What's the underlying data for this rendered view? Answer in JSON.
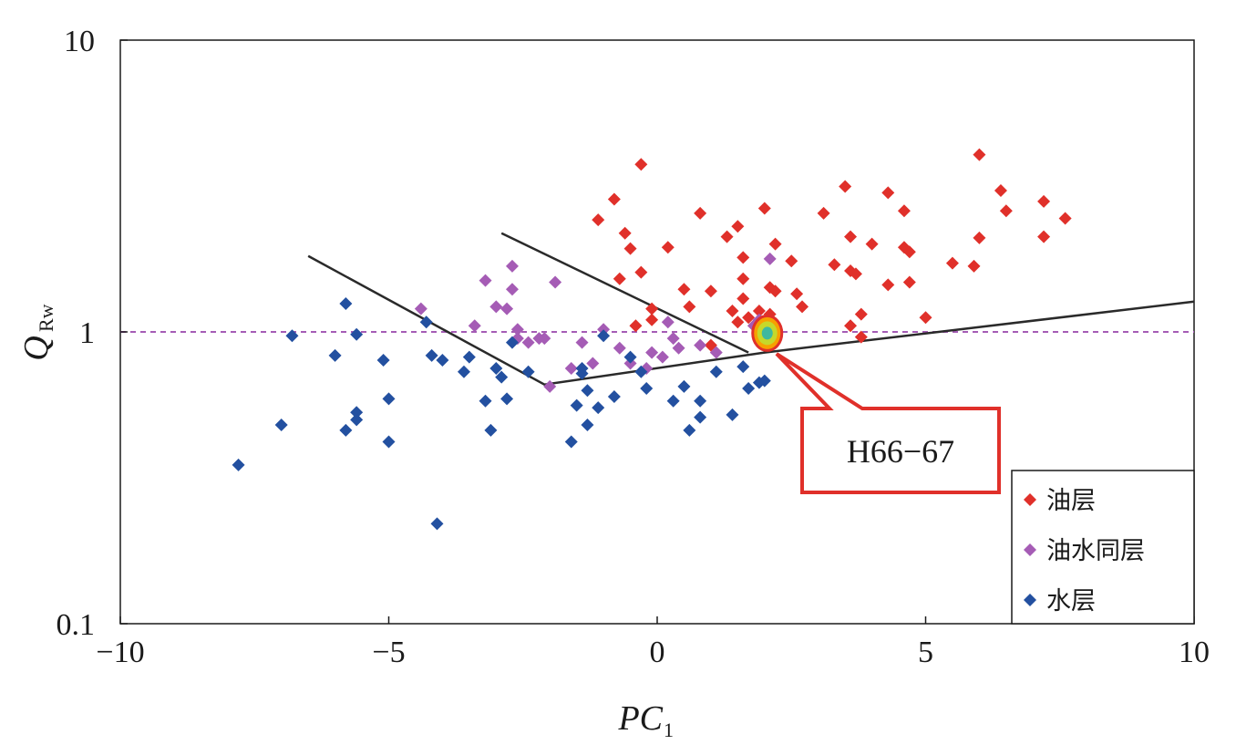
{
  "chart_data": {
    "type": "scatter",
    "title": "",
    "xlabel": "PC",
    "xlabel_sub": "1",
    "ylabel": "Q",
    "ylabel_sub": "Rw",
    "xlim": [
      -10,
      10
    ],
    "ylim": [
      0.1,
      10
    ],
    "yscale": "log",
    "x_ticks": [
      {
        "value": -10,
        "label": "−10"
      },
      {
        "value": -5,
        "label": "−5"
      },
      {
        "value": 0,
        "label": "0"
      },
      {
        "value": 5,
        "label": "5"
      },
      {
        "value": 10,
        "label": "10"
      }
    ],
    "y_ticks": [
      {
        "value": 10,
        "label": "10"
      },
      {
        "value": 1,
        "label": "1"
      },
      {
        "value": 0.1,
        "label": "0.1"
      }
    ],
    "grid": false,
    "legend_position": "bottom-right",
    "series": [
      {
        "name": "油层",
        "color": "#e0302a",
        "points": [
          [
            -1.1,
            2.42
          ],
          [
            -0.8,
            2.85
          ],
          [
            -0.6,
            2.18
          ],
          [
            -0.5,
            1.93
          ],
          [
            -0.7,
            1.52
          ],
          [
            -0.3,
            3.75
          ],
          [
            -0.3,
            1.6
          ],
          [
            -0.1,
            1.2
          ],
          [
            -0.1,
            1.1
          ],
          [
            -0.4,
            1.05
          ],
          [
            0.2,
            1.95
          ],
          [
            0.5,
            1.4
          ],
          [
            0.6,
            1.22
          ],
          [
            0.8,
            2.55
          ],
          [
            1.0,
            1.38
          ],
          [
            1.3,
            2.12
          ],
          [
            1.4,
            1.18
          ],
          [
            1.5,
            1.08
          ],
          [
            1.5,
            2.3
          ],
          [
            1.6,
            1.8
          ],
          [
            1.6,
            1.3
          ],
          [
            1.6,
            1.52
          ],
          [
            1.7,
            1.12
          ],
          [
            1.8,
            1.05
          ],
          [
            1.9,
            1.18
          ],
          [
            2.0,
            2.65
          ],
          [
            2.1,
            1.42
          ],
          [
            2.1,
            1.15
          ],
          [
            2.2,
            2.0
          ],
          [
            2.2,
            1.38
          ],
          [
            2.5,
            1.75
          ],
          [
            2.6,
            1.35
          ],
          [
            2.7,
            1.22
          ],
          [
            3.1,
            2.55
          ],
          [
            3.3,
            1.7
          ],
          [
            3.5,
            3.15
          ],
          [
            3.6,
            1.62
          ],
          [
            3.6,
            2.12
          ],
          [
            3.6,
            1.05
          ],
          [
            3.7,
            1.58
          ],
          [
            3.8,
            0.96
          ],
          [
            3.8,
            1.15
          ],
          [
            4.0,
            2.0
          ],
          [
            4.3,
            1.45
          ],
          [
            4.3,
            3.0
          ],
          [
            4.6,
            2.6
          ],
          [
            4.6,
            1.95
          ],
          [
            4.7,
            1.88
          ],
          [
            4.7,
            1.48
          ],
          [
            5.0,
            1.12
          ],
          [
            5.5,
            1.72
          ],
          [
            5.9,
            1.68
          ],
          [
            6.0,
            4.05
          ],
          [
            6.0,
            2.1
          ],
          [
            6.4,
            3.05
          ],
          [
            6.5,
            2.6
          ],
          [
            7.2,
            2.8
          ],
          [
            7.2,
            2.12
          ],
          [
            7.6,
            2.45
          ],
          [
            1.0,
            0.9
          ]
        ]
      },
      {
        "name": "油水同层",
        "color": "#a55cb5",
        "points": [
          [
            -4.4,
            1.2
          ],
          [
            -3.4,
            1.05
          ],
          [
            -3.2,
            1.5
          ],
          [
            -3.0,
            1.22
          ],
          [
            -2.8,
            1.2
          ],
          [
            -2.7,
            1.68
          ],
          [
            -2.7,
            1.4
          ],
          [
            -2.6,
            1.02
          ],
          [
            -2.6,
            0.95
          ],
          [
            -2.4,
            0.92
          ],
          [
            -2.2,
            0.95
          ],
          [
            -2.1,
            0.95
          ],
          [
            -1.9,
            1.48
          ],
          [
            -1.6,
            0.75
          ],
          [
            -1.4,
            0.92
          ],
          [
            -1.2,
            0.78
          ],
          [
            -1.0,
            1.02
          ],
          [
            -0.7,
            0.88
          ],
          [
            -0.5,
            0.78
          ],
          [
            -0.2,
            0.75
          ],
          [
            -0.1,
            0.85
          ],
          [
            0.1,
            0.82
          ],
          [
            0.2,
            1.08
          ],
          [
            0.3,
            0.95
          ],
          [
            0.4,
            0.88
          ],
          [
            0.8,
            0.9
          ],
          [
            1.1,
            0.85
          ],
          [
            1.8,
            1.05
          ],
          [
            1.9,
            1.1
          ],
          [
            2.1,
            1.78
          ],
          [
            -2.0,
            0.65
          ]
        ]
      },
      {
        "name": "水层",
        "color": "#2350a0",
        "points": [
          [
            -7.8,
            0.35
          ],
          [
            -7.0,
            0.48
          ],
          [
            -6.8,
            0.97
          ],
          [
            -6.0,
            0.83
          ],
          [
            -5.8,
            0.46
          ],
          [
            -5.8,
            1.25
          ],
          [
            -5.6,
            0.5
          ],
          [
            -5.6,
            0.53
          ],
          [
            -5.6,
            0.98
          ],
          [
            -5.1,
            0.8
          ],
          [
            -5.0,
            0.59
          ],
          [
            -5.0,
            0.42
          ],
          [
            -4.3,
            1.08
          ],
          [
            -4.2,
            0.83
          ],
          [
            -4.0,
            0.8
          ],
          [
            -4.1,
            0.22
          ],
          [
            -3.6,
            0.73
          ],
          [
            -3.5,
            0.82
          ],
          [
            -3.2,
            0.58
          ],
          [
            -3.1,
            0.46
          ],
          [
            -3.0,
            0.75
          ],
          [
            -2.9,
            0.7
          ],
          [
            -2.8,
            0.59
          ],
          [
            -2.7,
            0.92
          ],
          [
            -2.4,
            0.73
          ],
          [
            -1.6,
            0.42
          ],
          [
            -1.5,
            0.56
          ],
          [
            -1.4,
            0.75
          ],
          [
            -1.4,
            0.72
          ],
          [
            -1.3,
            0.48
          ],
          [
            -1.3,
            0.63
          ],
          [
            -1.1,
            0.55
          ],
          [
            -1.0,
            0.97
          ],
          [
            -0.8,
            0.6
          ],
          [
            -0.5,
            0.82
          ],
          [
            -0.3,
            0.73
          ],
          [
            -0.2,
            0.64
          ],
          [
            0.3,
            0.58
          ],
          [
            0.5,
            0.65
          ],
          [
            0.6,
            0.46
          ],
          [
            0.8,
            0.58
          ],
          [
            0.8,
            0.51
          ],
          [
            1.1,
            0.73
          ],
          [
            1.4,
            0.52
          ],
          [
            1.6,
            0.76
          ],
          [
            1.7,
            0.64
          ],
          [
            1.9,
            0.67
          ],
          [
            2.0,
            0.68
          ]
        ]
      }
    ],
    "boundary_lines": [
      {
        "name": "lower-boundary",
        "points": [
          [
            -6.5,
            1.82
          ],
          [
            -2.1,
            0.66
          ],
          [
            2.0,
            0.85
          ],
          [
            10.0,
            1.27
          ]
        ]
      },
      {
        "name": "upper-boundary",
        "points": [
          [
            -2.9,
            2.18
          ],
          [
            1.7,
            0.85
          ]
        ]
      }
    ],
    "reference_line": {
      "y": 1.0,
      "color": "#a55cb5",
      "style": "dashed"
    },
    "highlight": {
      "x": 2.05,
      "y": 0.99,
      "label": "H66−67",
      "callout_color": "#e0302a"
    }
  }
}
